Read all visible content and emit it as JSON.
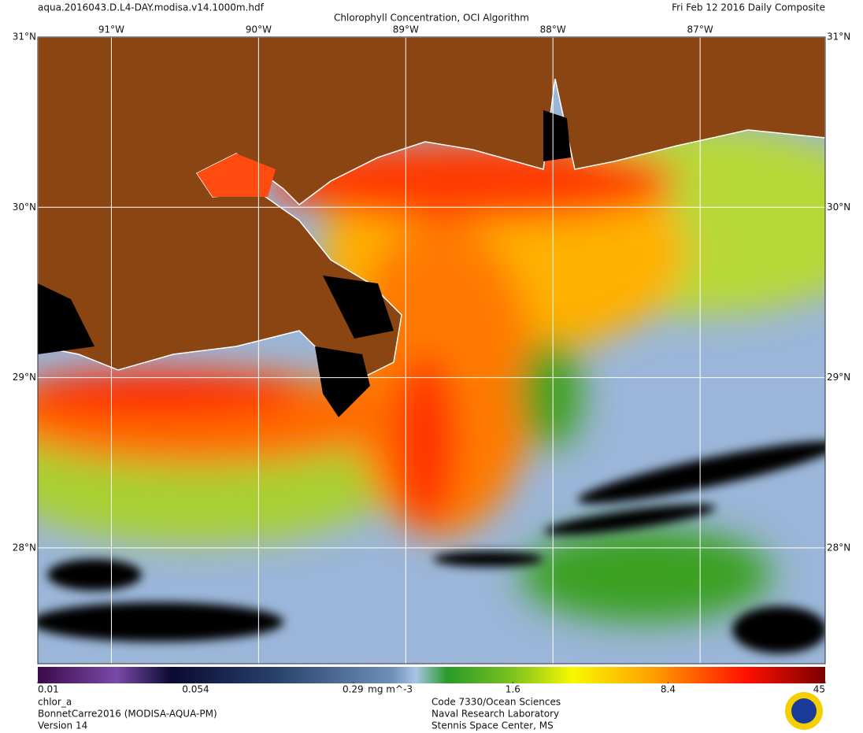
{
  "header": {
    "file": "aqua.2016043.D.L4-DAY.modisa.v14.1000m.hdf",
    "title": "Chlorophyll Concentration, OCI Algorithm",
    "date": "Fri Feb 12 2016 Daily Composite"
  },
  "map": {
    "lon_range": [
      -91.5,
      -86.15
    ],
    "lat_range": [
      27.32,
      31
    ],
    "lon_ticks": [
      {
        "value": -91,
        "label": "91°W"
      },
      {
        "value": -90,
        "label": "90°W"
      },
      {
        "value": -89,
        "label": "89°W"
      },
      {
        "value": -88,
        "label": "88°W"
      },
      {
        "value": -87,
        "label": "87°W"
      }
    ],
    "lat_ticks": [
      {
        "value": 31,
        "label": "31°N"
      },
      {
        "value": 30,
        "label": "30°N"
      },
      {
        "value": 29,
        "label": "29°N"
      },
      {
        "value": 28,
        "label": "28°N"
      }
    ]
  },
  "colorbar": {
    "scale": "log",
    "range": [
      0.01,
      45
    ],
    "ticks": [
      0.01,
      0.054,
      0.29,
      1.6,
      8.4,
      45
    ],
    "unit": "mg m^-3"
  },
  "footer": {
    "left": [
      "chlor_a",
      "BonnetCarre2016 (MODISA-AQUA-PM)",
      "Version 14"
    ],
    "center": [
      "Code 7330/Ocean Sciences",
      "Naval Research Laboratory",
      "Stennis Space Center, MS"
    ]
  }
}
